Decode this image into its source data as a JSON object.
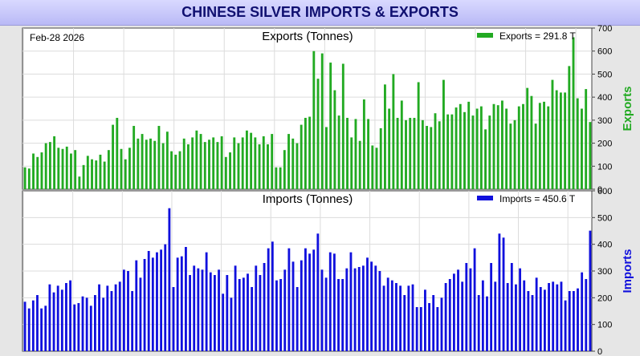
{
  "page_title": "CHINESE SILVER IMPORTS & EXPORTS",
  "date_label": "Feb-28  2026",
  "colors": {
    "exports": "#22aa22",
    "imports": "#1010dd",
    "grid": "#dcdcdc",
    "title_bar": "#c8c8ff",
    "title_text": "#101070"
  },
  "chart_data": [
    {
      "type": "bar",
      "title": "Exports (Tonnes)",
      "ylabel": "Exports",
      "legend": "Exports = 291.8 T",
      "legend_position": "top-right",
      "grid": true,
      "ylim": [
        0,
        700
      ],
      "ticks": [
        "0",
        "100",
        "200",
        "300",
        "400",
        "500",
        "600",
        "700"
      ],
      "values": [
        95,
        90,
        155,
        140,
        160,
        200,
        205,
        230,
        180,
        175,
        185,
        155,
        170,
        55,
        105,
        145,
        130,
        125,
        150,
        120,
        170,
        280,
        310,
        175,
        130,
        180,
        275,
        220,
        240,
        215,
        220,
        210,
        275,
        200,
        250,
        165,
        150,
        165,
        220,
        195,
        225,
        255,
        240,
        205,
        215,
        225,
        205,
        230,
        140,
        160,
        225,
        200,
        225,
        255,
        245,
        225,
        195,
        230,
        195,
        240,
        95,
        95,
        170,
        240,
        220,
        200,
        280,
        310,
        315,
        600,
        480,
        590,
        270,
        550,
        430,
        320,
        545,
        310,
        225,
        305,
        210,
        390,
        305,
        190,
        180,
        265,
        455,
        350,
        500,
        310,
        385,
        300,
        310,
        310,
        465,
        300,
        275,
        270,
        330,
        295,
        475,
        325,
        325,
        355,
        370,
        335,
        380,
        320,
        350,
        360,
        260,
        320,
        370,
        365,
        385,
        350,
        285,
        300,
        360,
        370,
        440,
        405,
        285,
        375,
        380,
        360,
        475,
        430,
        420,
        420,
        535,
        660,
        395,
        350,
        435,
        292
      ]
    },
    {
      "type": "bar",
      "title": "Imports (Tonnes)",
      "ylabel": "Imports",
      "legend": "Imports = 450.6 T",
      "legend_position": "top-right",
      "grid": true,
      "ylim": [
        0,
        600
      ],
      "ticks": [
        "0",
        "100",
        "200",
        "300",
        "400",
        "500",
        "600"
      ],
      "values": [
        185,
        160,
        190,
        210,
        160,
        170,
        250,
        220,
        245,
        230,
        255,
        265,
        175,
        180,
        205,
        200,
        170,
        210,
        250,
        200,
        245,
        225,
        250,
        260,
        305,
        300,
        225,
        340,
        275,
        345,
        375,
        350,
        370,
        380,
        400,
        535,
        240,
        350,
        355,
        390,
        285,
        320,
        310,
        305,
        370,
        295,
        285,
        305,
        215,
        285,
        200,
        320,
        270,
        275,
        290,
        240,
        320,
        285,
        330,
        385,
        410,
        265,
        270,
        305,
        385,
        335,
        240,
        340,
        385,
        365,
        380,
        440,
        305,
        275,
        370,
        365,
        270,
        270,
        310,
        370,
        310,
        315,
        320,
        350,
        335,
        320,
        300,
        245,
        275,
        265,
        255,
        245,
        210,
        245,
        250,
        165,
        165,
        230,
        180,
        210,
        165,
        200,
        255,
        270,
        290,
        305,
        260,
        330,
        310,
        385,
        210,
        265,
        205,
        330,
        260,
        440,
        425,
        255,
        330,
        250,
        310,
        265,
        225,
        210,
        275,
        240,
        230,
        255,
        260,
        250,
        260,
        190,
        225,
        225,
        235,
        295,
        270,
        451
      ]
    }
  ]
}
